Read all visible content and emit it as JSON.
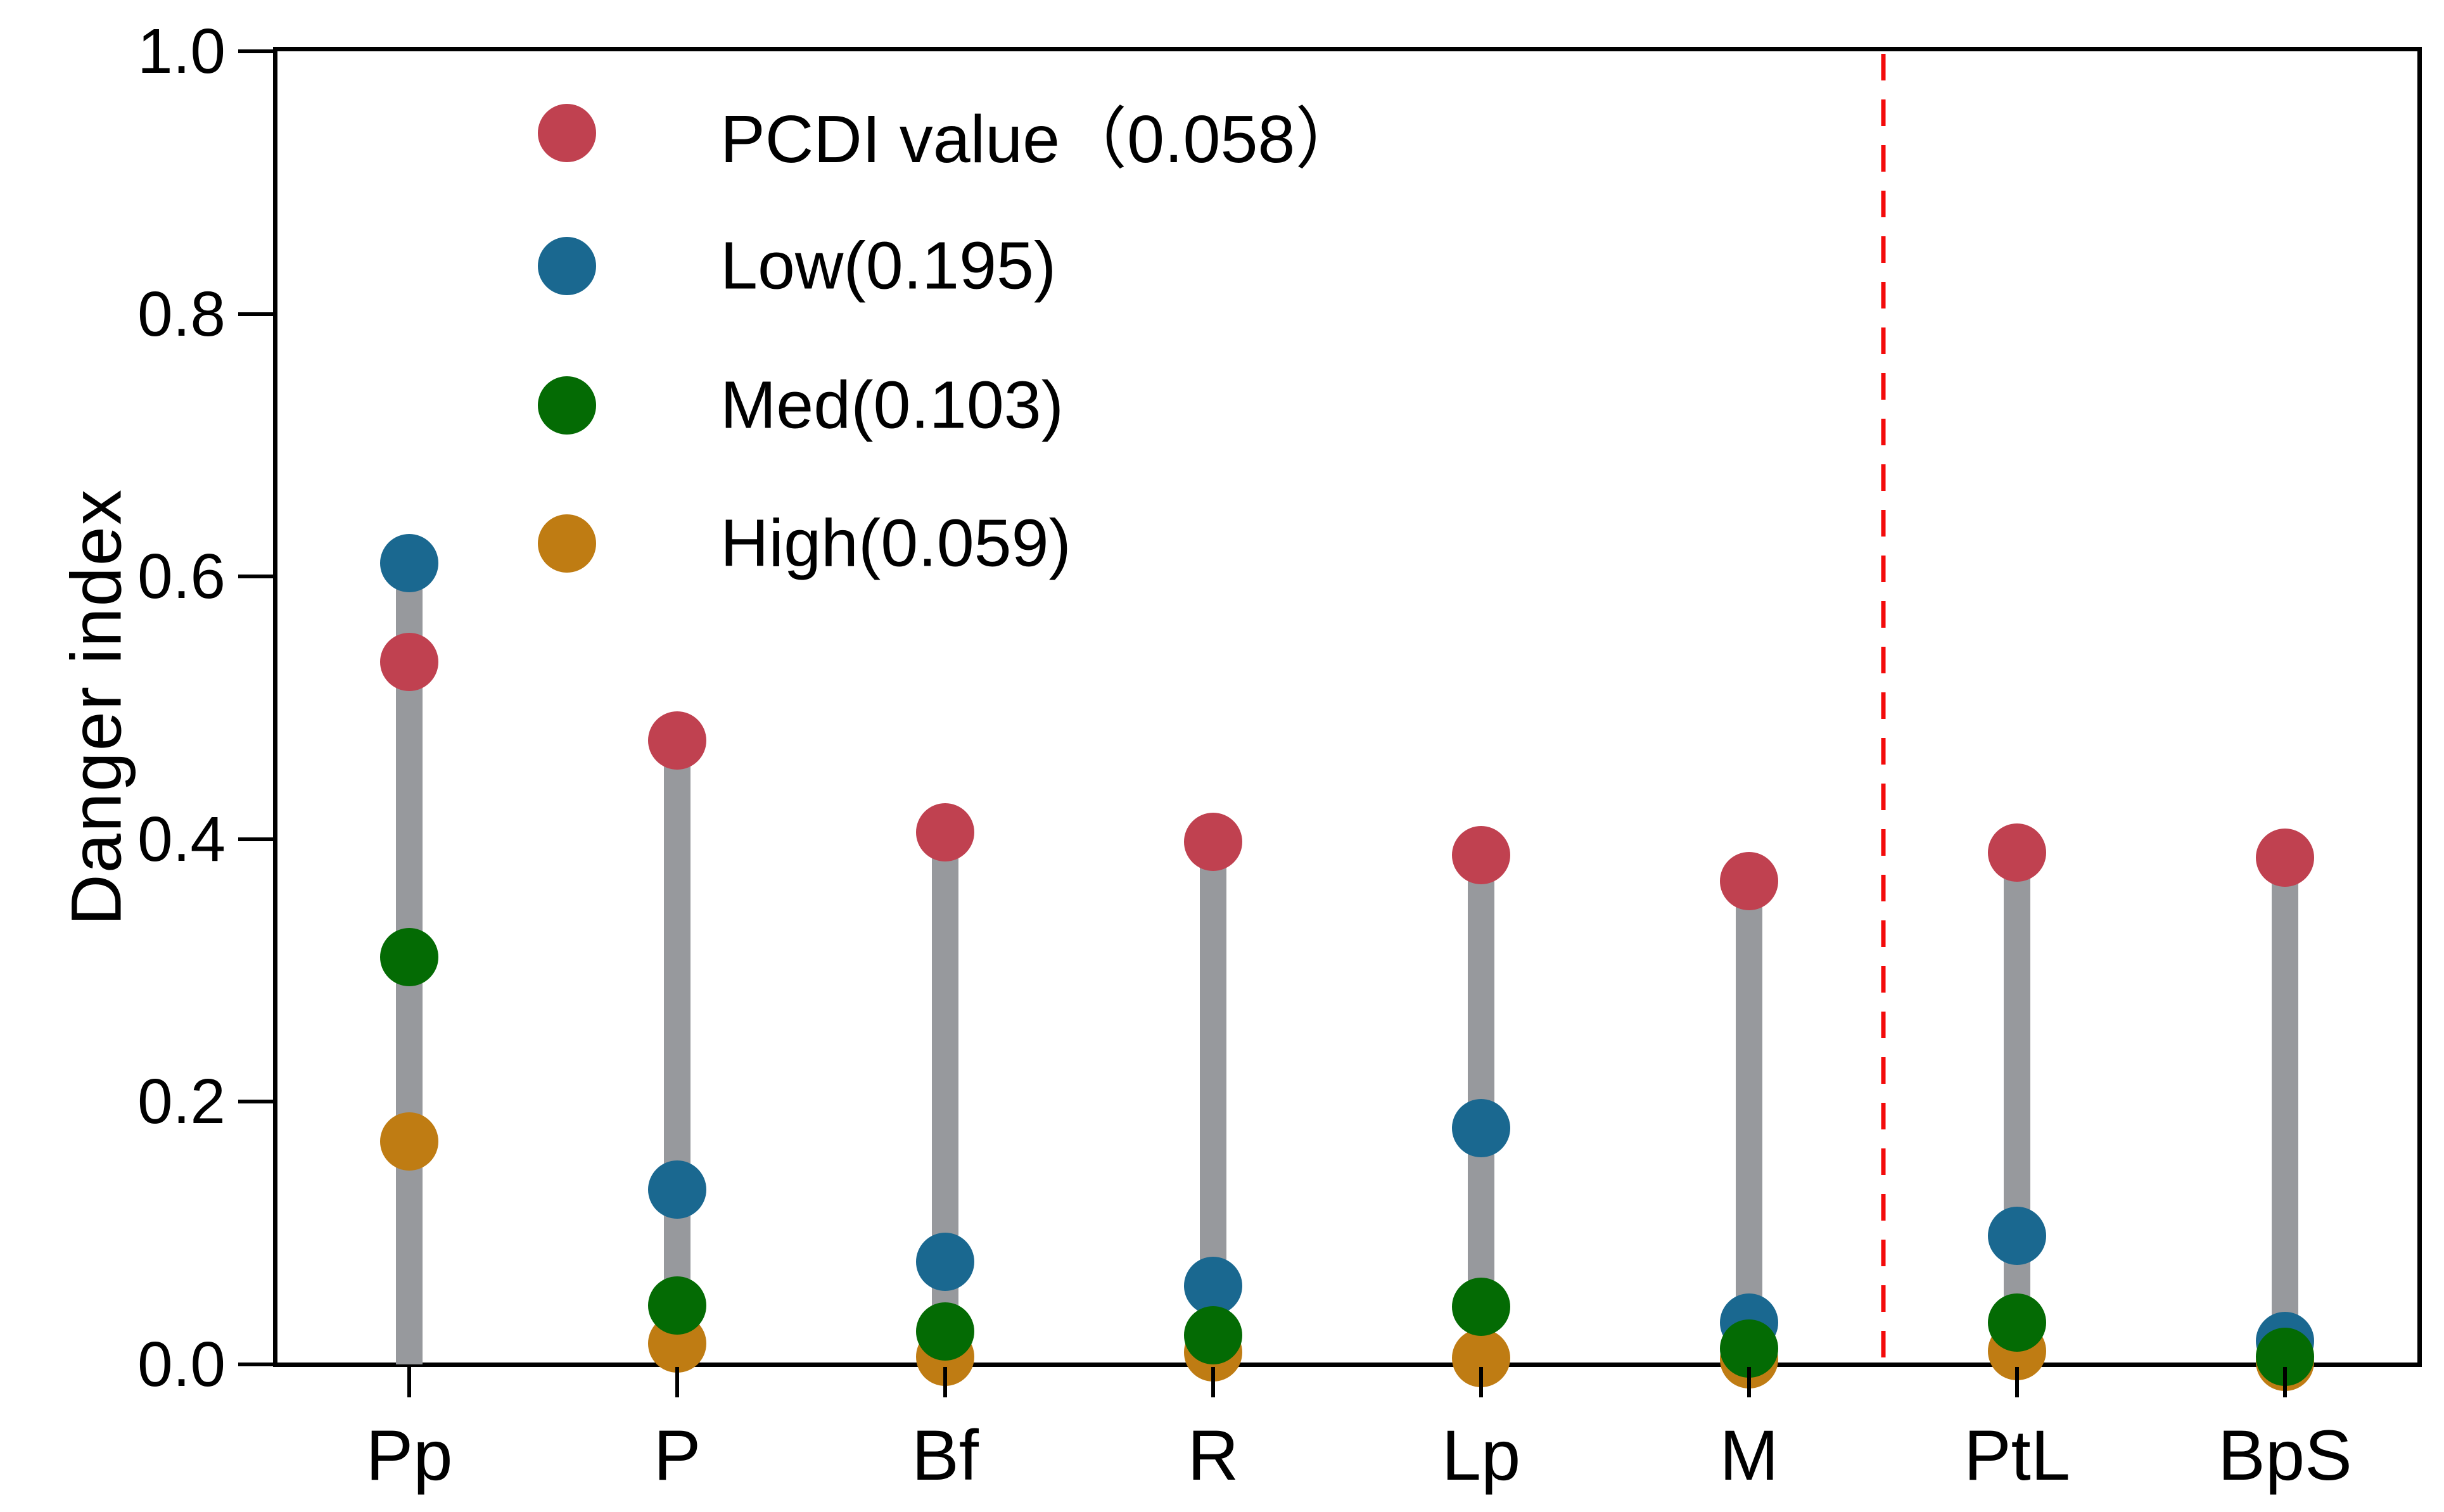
{
  "page": {
    "background": "#ffffff"
  },
  "chart_data": {
    "type": "scatter",
    "subtype": "lollipop-stem-plot",
    "title": "",
    "xlabel": "",
    "ylabel": "Danger index",
    "ylim": [
      0.0,
      1.0
    ],
    "ytick_values": [
      0.0,
      0.2,
      0.4,
      0.6,
      0.8,
      1.0
    ],
    "ytick_labels": [
      "0.0",
      "0.2",
      "0.4",
      "0.6",
      "0.8",
      "1.0"
    ],
    "grid": false,
    "plot_border": "full box",
    "legend_position": "upper left inside plot",
    "categories": [
      "Pp",
      "P",
      "Bf",
      "R",
      "Lp",
      "M",
      "PtL",
      "BpS"
    ],
    "series": [
      {
        "name": "PCDI value（0.058）",
        "role": "pcdi",
        "color": "#c04150",
        "values": [
          0.535,
          0.475,
          0.405,
          0.398,
          0.388,
          0.368,
          0.39,
          0.386
        ]
      },
      {
        "name": "Low(0.195)",
        "role": "low",
        "color": "#1a6890",
        "values": [
          0.61,
          0.133,
          0.078,
          0.06,
          0.18,
          0.032,
          0.098,
          0.018
        ]
      },
      {
        "name": "Med(0.103)",
        "role": "med",
        "color": "#046b04",
        "values": [
          0.31,
          0.045,
          0.025,
          0.022,
          0.044,
          0.012,
          0.032,
          0.006
        ]
      },
      {
        "name": "High(0.059)",
        "role": "high",
        "color": "#bf7c13",
        "values": [
          0.17,
          0.016,
          0.006,
          0.009,
          0.005,
          0.004,
          0.01,
          0.002
        ]
      }
    ],
    "stem_color": "#97999d",
    "divider_line": {
      "between_categories": [
        "M",
        "PtL"
      ],
      "color": "#f30b0b",
      "style": "dashed vertical"
    }
  }
}
